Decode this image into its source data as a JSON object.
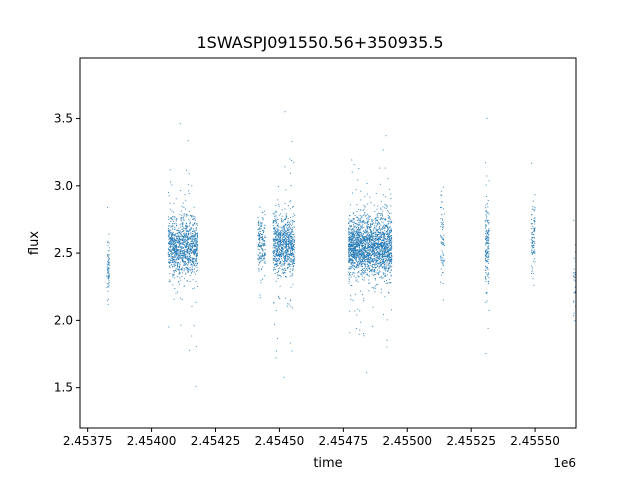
{
  "chart_data": {
    "type": "scatter",
    "title": "1SWASPJ091550.56+350935.5",
    "xlabel": "time",
    "ylabel": "flux",
    "x_offset_label": "1e6",
    "xlim": [
      2.45372,
      2.45566
    ],
    "ylim": [
      1.2,
      3.95
    ],
    "x_ticks": [
      2.45375,
      2.454,
      2.45425,
      2.4545,
      2.45475,
      2.455,
      2.45525,
      2.4555
    ],
    "x_tick_labels": [
      "2.45375",
      "2.45400",
      "2.45425",
      "2.45450",
      "2.45475",
      "2.45500",
      "2.45525",
      "2.45550"
    ],
    "y_ticks": [
      1.5,
      2.0,
      2.5,
      3.0,
      3.5
    ],
    "y_tick_labels": [
      "1.5",
      "2.0",
      "2.5",
      "3.0",
      "3.5"
    ],
    "grid": false,
    "marker_color": "#1f77b4",
    "clusters": [
      {
        "x_start": 2.453825,
        "x_end": 2.453835,
        "center": 2.37,
        "spread": 0.2,
        "n": 70
      },
      {
        "x_start": 2.454065,
        "x_end": 2.45418,
        "center": 2.55,
        "spread": 0.2,
        "n": 1100
      },
      {
        "x_start": 2.454415,
        "x_end": 2.454445,
        "center": 2.56,
        "spread": 0.18,
        "n": 180
      },
      {
        "x_start": 2.454475,
        "x_end": 2.45456,
        "center": 2.57,
        "spread": 0.2,
        "n": 850
      },
      {
        "x_start": 2.45477,
        "x_end": 2.45494,
        "center": 2.55,
        "spread": 0.2,
        "n": 2100
      },
      {
        "x_start": 2.45513,
        "x_end": 2.455145,
        "center": 2.6,
        "spread": 0.3,
        "n": 70
      },
      {
        "x_start": 2.455305,
        "x_end": 2.45532,
        "center": 2.56,
        "spread": 0.25,
        "n": 160
      },
      {
        "x_start": 2.455485,
        "x_end": 2.4555,
        "center": 2.62,
        "spread": 0.25,
        "n": 90
      },
      {
        "x_start": 2.45565,
        "x_end": 2.45566,
        "center": 2.3,
        "spread": 0.2,
        "n": 30
      }
    ]
  }
}
